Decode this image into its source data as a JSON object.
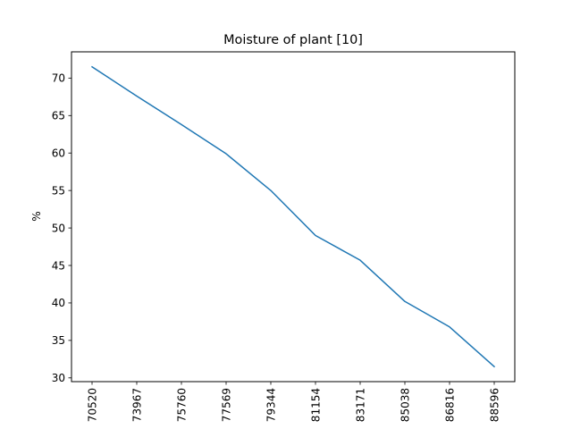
{
  "chart_data": {
    "type": "line",
    "title": "Moisture of plant [10]",
    "xlabel": "",
    "ylabel": "%",
    "categories": [
      "70520",
      "73967",
      "75760",
      "77569",
      "79344",
      "81154",
      "83171",
      "85038",
      "86816",
      "88596"
    ],
    "series": [
      {
        "values": [
          71.5,
          67.6,
          63.8,
          59.9,
          55.0,
          49.0,
          45.7,
          40.2,
          36.8,
          31.5
        ],
        "color": "#1f77b4"
      }
    ],
    "yticks": [
      30,
      35,
      40,
      45,
      50,
      55,
      60,
      65,
      70
    ],
    "ylim": [
      29.5,
      73.5
    ],
    "grid": false,
    "legend": "none"
  }
}
